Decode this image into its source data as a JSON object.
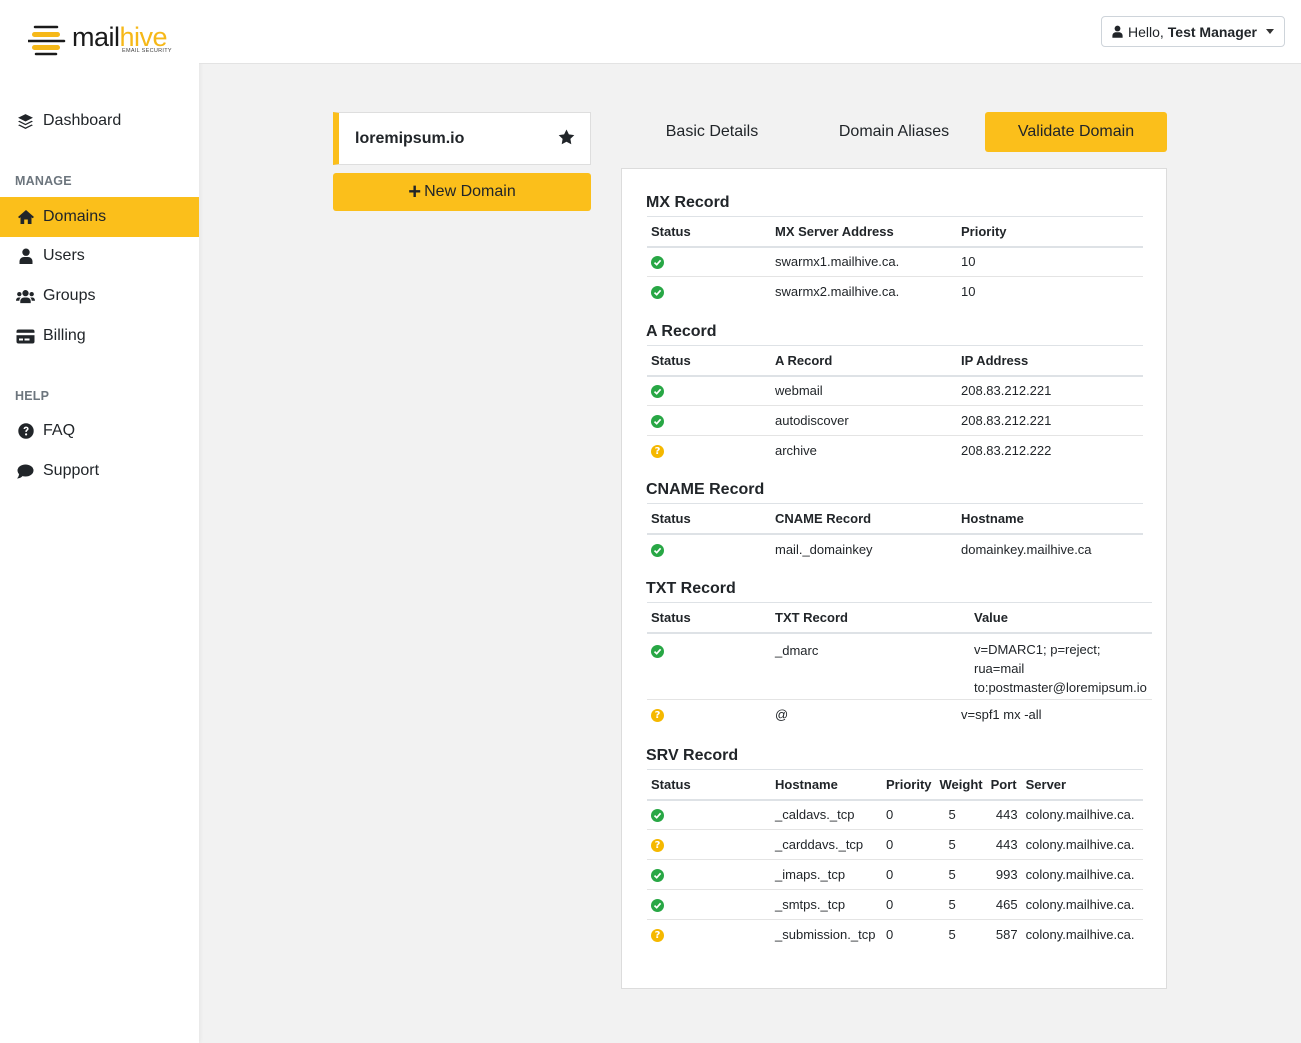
{
  "brand": {
    "name_dark": "mail",
    "name_accent": "hive",
    "tagline": "EMAIL SECURITY",
    "accent": "#fbbf1b"
  },
  "sidebar": {
    "dashboard": "Dashboard",
    "manage_heading": "MANAGE",
    "domains": "Domains",
    "users": "Users",
    "groups": "Groups",
    "billing": "Billing",
    "help_heading": "HELP",
    "faq": "FAQ",
    "support": "Support"
  },
  "header": {
    "greeting": "Hello,",
    "user": "Test Manager"
  },
  "domain": {
    "name": "loremipsum.io",
    "new_label": "New Domain"
  },
  "tabs": {
    "basic": "Basic Details",
    "aliases": "Domain Aliases",
    "validate": "Validate Domain"
  },
  "mx": {
    "title": "MX Record",
    "headers": [
      "Status",
      "MX Server Address",
      "Priority"
    ],
    "rows": [
      {
        "status": "ok",
        "address": "swarmx1.mailhive.ca.",
        "priority": "10"
      },
      {
        "status": "ok",
        "address": "swarmx2.mailhive.ca.",
        "priority": "10"
      }
    ]
  },
  "a": {
    "title": "A Record",
    "headers": [
      "Status",
      "A Record",
      "IP Address"
    ],
    "rows": [
      {
        "status": "ok",
        "record": "webmail",
        "ip": "208.83.212.221"
      },
      {
        "status": "ok",
        "record": "autodiscover",
        "ip": "208.83.212.221"
      },
      {
        "status": "warn",
        "record": "archive",
        "ip": "208.83.212.222"
      }
    ]
  },
  "cname": {
    "title": "CNAME Record",
    "headers": [
      "Status",
      "CNAME Record",
      "Hostname"
    ],
    "rows": [
      {
        "status": "ok",
        "record": "mail._domainkey",
        "host": "domainkey.mailhive.ca"
      }
    ]
  },
  "txt": {
    "title": "TXT Record",
    "headers": [
      "Status",
      "TXT Record",
      "Value"
    ],
    "rows": [
      {
        "status": "ok",
        "record": "_dmarc",
        "value_line1": "v=DMARC1; p=reject; rua=mail",
        "value_line2": "to:postmaster@loremipsum.io"
      },
      {
        "status": "warn",
        "record": "@",
        "value": "v=spf1 mx -all"
      }
    ]
  },
  "srv": {
    "title": "SRV Record",
    "headers": [
      "Status",
      "Hostname",
      "Priority",
      "Weight",
      "Port",
      "Server"
    ],
    "rows": [
      {
        "status": "ok",
        "host": "_caldavs._tcp",
        "priority": "0",
        "weight": "5",
        "port": "443",
        "server": "colony.mailhive.ca."
      },
      {
        "status": "warn",
        "host": "_carddavs._tcp",
        "priority": "0",
        "weight": "5",
        "port": "443",
        "server": "colony.mailhive.ca."
      },
      {
        "status": "ok",
        "host": "_imaps._tcp",
        "priority": "0",
        "weight": "5",
        "port": "993",
        "server": "colony.mailhive.ca."
      },
      {
        "status": "ok",
        "host": "_smtps._tcp",
        "priority": "0",
        "weight": "5",
        "port": "465",
        "server": "colony.mailhive.ca."
      },
      {
        "status": "warn",
        "host": "_submission._tcp",
        "priority": "0",
        "weight": "5",
        "port": "587",
        "server": "colony.mailhive.ca."
      }
    ]
  },
  "status_icons": {
    "ok": "check-circle-icon",
    "warn": "question-circle-icon",
    "ok_color": "#28a745",
    "warn_color": "#f5b800",
    "warn_glyph": "?"
  }
}
